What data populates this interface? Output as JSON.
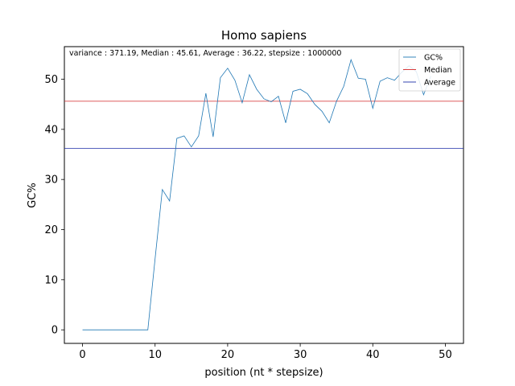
{
  "chart_data": {
    "type": "line",
    "title": "Homo sapiens",
    "annotation": "variance : 371.19, Median : 45.61, Average : 36.22, stepsize : 1000000",
    "xlabel": "position (nt * stepsize)",
    "ylabel": "GC%",
    "xlim": [
      -2.5,
      52.5
    ],
    "ylim": [
      -2.7,
      56.5
    ],
    "xticks": [
      0,
      10,
      20,
      30,
      40,
      50
    ],
    "yticks": [
      0,
      10,
      20,
      30,
      40,
      50
    ],
    "grid": false,
    "legend_position": "top-right",
    "series": [
      {
        "name": "GC%",
        "color": "#1f77b4",
        "x": [
          0,
          1,
          2,
          3,
          4,
          5,
          6,
          7,
          8,
          9,
          10,
          11,
          12,
          13,
          14,
          15,
          16,
          17,
          18,
          19,
          20,
          21,
          22,
          23,
          24,
          25,
          26,
          27,
          28,
          29,
          30,
          31,
          32,
          33,
          34,
          35,
          36,
          37,
          38,
          39,
          40,
          41,
          42,
          43,
          44,
          45,
          46,
          47,
          48
        ],
        "y": [
          0,
          0,
          0,
          0,
          0,
          0,
          0,
          0,
          0,
          0,
          14.2,
          28,
          25.7,
          38.2,
          38.7,
          36.5,
          38.7,
          47.2,
          38.5,
          50.3,
          52.2,
          49.8,
          45.3,
          50.9,
          48,
          46.1,
          45.5,
          46.6,
          41.3,
          47.6,
          48,
          47.1,
          45,
          43.6,
          41.3,
          45.6,
          48.6,
          53.9,
          50.2,
          50,
          44.2,
          49.6,
          50.3,
          49.8,
          51.4,
          52.7,
          51.5,
          46.9,
          50.6
        ]
      },
      {
        "name": "Median",
        "color": "#d62728",
        "y_const": 45.61
      },
      {
        "name": "Average",
        "color": "#1f2fa8",
        "y_const": 36.22
      }
    ]
  }
}
